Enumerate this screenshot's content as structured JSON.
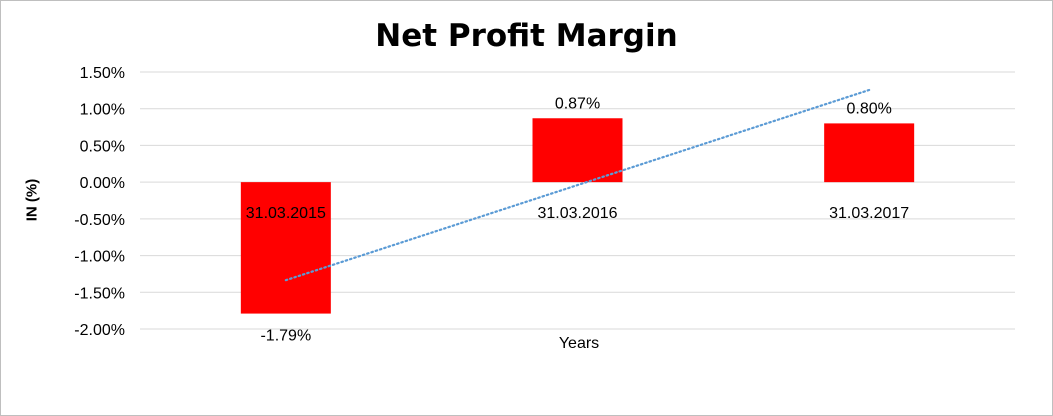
{
  "chart_data": {
    "type": "bar",
    "title": "Net Profit Margin",
    "xlabel": "Years",
    "ylabel": "IN (%)",
    "categories": [
      "31.03.2015",
      "31.03.2016",
      "31.03.2017"
    ],
    "values": [
      -1.79,
      0.87,
      0.8
    ],
    "data_labels": [
      "-1.79%",
      "0.87%",
      "0.80%"
    ],
    "ylim": [
      -2.0,
      1.5
    ],
    "yticks": [
      1.5,
      1.0,
      0.5,
      0.0,
      -0.5,
      -1.0,
      -1.5,
      -2.0
    ],
    "ytick_labels": [
      "1.50%",
      "1.00%",
      "0.50%",
      "0.00%",
      "-0.50%",
      "-1.00%",
      "-1.50%",
      "-2.00%"
    ],
    "grid": true,
    "legend": "none",
    "trendline": {
      "type": "linear",
      "style": "dotted"
    },
    "colors": {
      "bar": "#ff0000",
      "trendline": "#5b9bd5",
      "grid": "#d9d9d9"
    }
  }
}
